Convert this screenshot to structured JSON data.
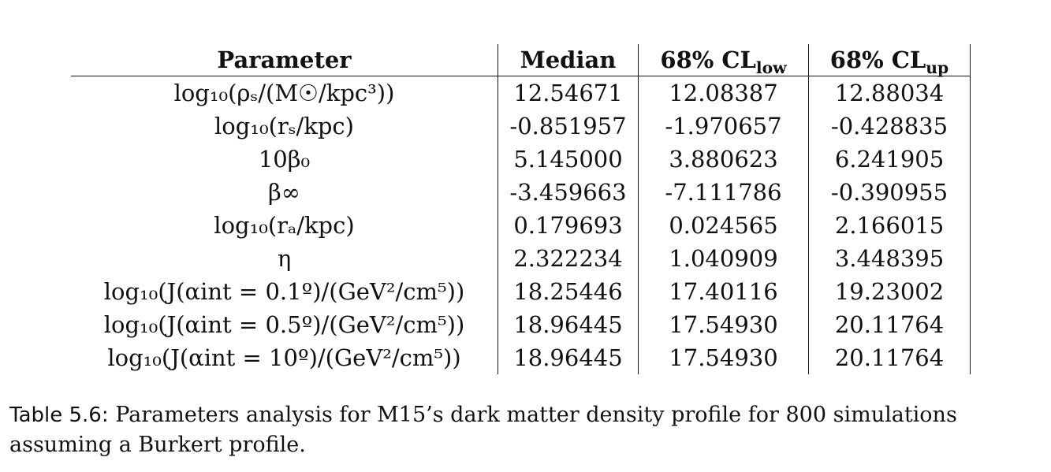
{
  "table": {
    "headers": {
      "parameter": "Parameter",
      "median": "Median",
      "cl_low": {
        "main": "68% CL",
        "sub": "low"
      },
      "cl_up": {
        "main": "68% CL",
        "sub": "up"
      }
    },
    "rows": [
      {
        "parameter": "log₁₀(ρₛ/(M☉/kpc³))",
        "median": "12.54671",
        "cl_low": "12.08387",
        "cl_up": "12.88034"
      },
      {
        "parameter": "log₁₀(rₛ/kpc)",
        "median": "-0.851957",
        "cl_low": "-1.970657",
        "cl_up": "-0.428835"
      },
      {
        "parameter": "10β₀",
        "median": "5.145000",
        "cl_low": "3.880623",
        "cl_up": "6.241905"
      },
      {
        "parameter": "β∞",
        "median": "-3.459663",
        "cl_low": "-7.111786",
        "cl_up": "-0.390955"
      },
      {
        "parameter": "log₁₀(rₐ/kpc)",
        "median": "0.179693",
        "cl_low": "0.024565",
        "cl_up": "2.166015"
      },
      {
        "parameter": "η",
        "median": "2.322234",
        "cl_low": "1.040909",
        "cl_up": "3.448395"
      },
      {
        "parameter": "log₁₀(J(αint = 0.1º)/(GeV²/cm⁵))",
        "median": "18.25446",
        "cl_low": "17.40116",
        "cl_up": "19.23002"
      },
      {
        "parameter": "log₁₀(J(αint = 0.5º)/(GeV²/cm⁵))",
        "median": "18.96445",
        "cl_low": "17.54930",
        "cl_up": "20.11764"
      },
      {
        "parameter": "log₁₀(J(αint = 10º)/(GeV²/cm⁵))",
        "median": "18.96445",
        "cl_low": "17.54930",
        "cl_up": "20.11764"
      }
    ]
  },
  "caption": {
    "label": "Table 5.6:",
    "text": " Parameters analysis for M15’s dark matter density profile for 800 simulations assuming a Burkert profile."
  }
}
